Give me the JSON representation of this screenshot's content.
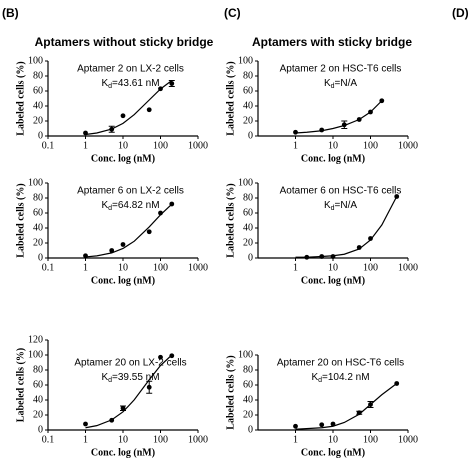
{
  "panel_labels": [
    "(B)",
    "(C)",
    "(D)"
  ],
  "column_titles": [
    "Aptamers without sticky bridge",
    "Aptamers with sticky bridge"
  ],
  "chart_data": [
    {
      "type": "scatter",
      "xlabel": "Conc. log (nM)",
      "ylabel": "Labeled cells (%)",
      "log_x": true,
      "annotation": "Aptamer 2 on LX-2 cells",
      "kd": {
        "symbol": "K",
        "sub": "d",
        "text": "=43.61 nM"
      },
      "xlim": [
        0.1,
        1000
      ],
      "xticks": [
        0.1,
        1,
        10,
        100,
        1000
      ],
      "ylim": [
        0,
        100
      ],
      "yticks": [
        0,
        20,
        40,
        60,
        80,
        100
      ],
      "color": "#000000",
      "points": {
        "x": [
          1,
          5,
          10,
          50,
          100,
          200
        ],
        "values": [
          4,
          9,
          27,
          35,
          63,
          70
        ],
        "errors": [
          null,
          4,
          null,
          null,
          null,
          4
        ]
      },
      "fit": {
        "x": [
          1,
          2,
          5,
          10,
          20,
          50,
          100,
          200
        ],
        "values": [
          2,
          4,
          9.3,
          16.8,
          28.6,
          48,
          62.7,
          74
        ]
      }
    },
    {
      "type": "scatter",
      "xlabel": "Conc. log (nM)",
      "ylabel": "Labeled cells (%)",
      "log_x": true,
      "annotation": "Aptamer 6 on LX-2 cells",
      "kd": {
        "symbol": "K",
        "sub": "d",
        "text": "=64.82 nM"
      },
      "xlim": [
        0.1,
        1000
      ],
      "xticks": [
        0.1,
        1,
        10,
        100,
        1000
      ],
      "ylim": [
        0,
        100
      ],
      "yticks": [
        0,
        20,
        40,
        60,
        80,
        100
      ],
      "color": "#000000",
      "points": {
        "x": [
          1,
          5,
          10,
          50,
          100,
          200
        ],
        "values": [
          3,
          10,
          18,
          35,
          60,
          72
        ],
        "errors": [
          null,
          null,
          null,
          null,
          null,
          null
        ]
      },
      "fit": {
        "x": [
          1,
          2,
          5,
          10,
          20,
          50,
          100,
          200
        ],
        "values": [
          1.4,
          2.8,
          6.8,
          12.7,
          22.4,
          41.4,
          57.6,
          71.7
        ]
      }
    },
    {
      "type": "scatter",
      "xlabel": "Conc. log (nM)",
      "ylabel": "Labeled cells (%)",
      "log_x": true,
      "annotation": "Aptamer 20 on LX-2 cells",
      "kd": {
        "symbol": "K",
        "sub": "d",
        "text": "=39.55 nM"
      },
      "xlim": [
        0.1,
        1000
      ],
      "xticks": [
        0.1,
        1,
        10,
        100,
        1000
      ],
      "ylim": [
        0,
        120
      ],
      "yticks": [
        0,
        20,
        40,
        60,
        80,
        100,
        120
      ],
      "color": "#000000",
      "points": {
        "x": [
          1,
          5,
          10,
          50,
          100,
          200
        ],
        "values": [
          8,
          13,
          29,
          57,
          97,
          99
        ],
        "errors": [
          null,
          null,
          3,
          8,
          null,
          null
        ]
      },
      "fit": {
        "x": [
          1,
          2,
          5,
          10,
          20,
          50,
          100,
          200
        ],
        "values": [
          3,
          5.8,
          13.5,
          24.2,
          40.3,
          67,
          86,
          100
        ]
      }
    },
    {
      "type": "scatter",
      "xlabel": "Conc. log (nM)",
      "ylabel": "Labeled cells (%)",
      "log_x": true,
      "annotation": "Aptamer 2 on HSC-T6 cells",
      "kd": {
        "symbol": "K",
        "sub": "d",
        "text": "=N/A"
      },
      "xlim": [
        0.1,
        1000
      ],
      "xticks": [
        1,
        10,
        100,
        1000
      ],
      "ylim": [
        0,
        100
      ],
      "yticks": [
        0,
        20,
        40,
        60,
        80,
        100
      ],
      "color": "#000000",
      "points": {
        "x": [
          1,
          5,
          20,
          50,
          100,
          200
        ],
        "values": [
          5,
          8,
          15,
          22,
          32,
          47
        ],
        "errors": [
          null,
          null,
          5,
          null,
          null,
          null
        ]
      },
      "fit": {
        "x": [
          1,
          2,
          5,
          10,
          20,
          50,
          100,
          200
        ],
        "values": [
          4,
          5,
          7,
          10,
          14,
          22,
          32,
          47
        ]
      }
    },
    {
      "type": "scatter",
      "xlabel": "Conc. log (nM)",
      "ylabel": "Labeled cells (%)",
      "log_x": true,
      "annotation": "Aotamer 6 on HSC-T6 cells",
      "kd": {
        "symbol": "K",
        "sub": "d",
        "text": "=N/A"
      },
      "xlim": [
        0.1,
        1000
      ],
      "xticks": [
        1,
        10,
        100,
        1000
      ],
      "ylim": [
        0,
        100
      ],
      "yticks": [
        0,
        20,
        40,
        60,
        80,
        100
      ],
      "color": "#000000",
      "points": {
        "x": [
          2,
          5,
          10,
          50,
          100,
          500
        ],
        "values": [
          1,
          2,
          2,
          14,
          26,
          82
        ],
        "errors": [
          null,
          null,
          null,
          null,
          null,
          null
        ]
      },
      "fit": {
        "x": [
          1,
          2,
          5,
          10,
          20,
          50,
          100,
          200,
          500
        ],
        "values": [
          1,
          1,
          2,
          3,
          5,
          12,
          24,
          44,
          82
        ]
      }
    },
    {
      "type": "scatter",
      "xlabel": "Conc. log (nM)",
      "ylabel": "Labeled cells (%)",
      "log_x": true,
      "annotation": "Aptamer 20 on HSC-T6 cells",
      "kd": {
        "symbol": "K",
        "sub": "d",
        "text": "=104.2 nM"
      },
      "xlim": [
        0.1,
        1000
      ],
      "xticks": [
        1,
        10,
        100,
        1000
      ],
      "ylim": [
        0,
        100
      ],
      "yticks": [
        0,
        20,
        40,
        60,
        80,
        100
      ],
      "color": "#000000",
      "points": {
        "x": [
          1,
          5,
          10,
          50,
          100,
          500
        ],
        "values": [
          5,
          7,
          8,
          23,
          34,
          62
        ],
        "errors": [
          null,
          null,
          null,
          2,
          4,
          null
        ]
      },
      "fit": {
        "x": [
          1,
          5,
          10,
          20,
          50,
          100,
          200,
          500
        ],
        "values": [
          1,
          3,
          5,
          10,
          21,
          34,
          47,
          62
        ]
      }
    }
  ]
}
